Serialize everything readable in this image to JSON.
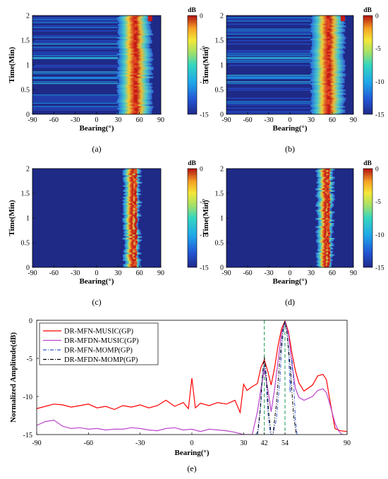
{
  "panels": [
    {
      "id": "a",
      "caption": "(a)",
      "type": "heatmap",
      "xlabel": "Bearing(°)",
      "ylabel": "Time(Min)",
      "xticks": [
        "-90",
        "-60",
        "-30",
        "0",
        "30",
        "60",
        "90"
      ],
      "yticks": [
        "0",
        "0.5",
        "1",
        "1.5",
        "2"
      ],
      "colorbar_title": "dB",
      "colorbar_ticks": [
        "0",
        "-5",
        "-10",
        "-15"
      ]
    },
    {
      "id": "b",
      "caption": "(b)",
      "type": "heatmap",
      "xlabel": "Bearing(°)",
      "ylabel": "Time(Min)",
      "xticks": [
        "-90",
        "-60",
        "-30",
        "0",
        "30",
        "60",
        "90"
      ],
      "yticks": [
        "0",
        "0.5",
        "1",
        "1.5",
        "2"
      ],
      "colorbar_title": "dB",
      "colorbar_ticks": [
        "0",
        "-5",
        "-10",
        "-15"
      ]
    },
    {
      "id": "c",
      "caption": "(c)",
      "type": "heatmap",
      "xlabel": "Bearing(°)",
      "ylabel": "Time(Min)",
      "xticks": [
        "-90",
        "-60",
        "-30",
        "0",
        "30",
        "60",
        "90"
      ],
      "yticks": [
        "0",
        "0.5",
        "1",
        "1.5",
        "2"
      ],
      "colorbar_title": "dB",
      "colorbar_ticks": [
        "0",
        "-5",
        "-10",
        "-15"
      ]
    },
    {
      "id": "d",
      "caption": "(d)",
      "type": "heatmap",
      "xlabel": "Bearing(°)",
      "ylabel": "Time(Min)",
      "xticks": [
        "-90",
        "-60",
        "-30",
        "0",
        "30",
        "60",
        "90"
      ],
      "yticks": [
        "0",
        "0.5",
        "1",
        "1.5",
        "2"
      ],
      "colorbar_title": "dB",
      "colorbar_ticks": [
        "0",
        "-5",
        "-10",
        "-15"
      ]
    }
  ],
  "chart_data": {
    "type": "line",
    "caption": "(e)",
    "xlabel": "Bearing(°)",
    "ylabel": "Normalized Amplitude(dB)",
    "xlim": [
      -90,
      90
    ],
    "ylim": [
      -15,
      0
    ],
    "xticks": [
      "-90",
      "-60",
      "-30",
      "0",
      "30",
      "42",
      "54",
      "90"
    ],
    "yticks": [
      "0",
      "-5",
      "-10",
      "-15"
    ],
    "markers": [
      42,
      54
    ],
    "legend_position": "top-left",
    "series": [
      {
        "name": "DR-MFN-MUSIC(GP)",
        "color": "#ff0000",
        "style": "solid",
        "x": [
          -90,
          -85,
          -80,
          -75,
          -70,
          -65,
          -60,
          -55,
          -50,
          -45,
          -40,
          -35,
          -30,
          -25,
          -20,
          -15,
          -10,
          -5,
          -2,
          0,
          2,
          5,
          10,
          15,
          20,
          25,
          28,
          30,
          32,
          35,
          38,
          40,
          42,
          44,
          46,
          48,
          50,
          52,
          54,
          56,
          58,
          60,
          62,
          65,
          70,
          73,
          76,
          78,
          80,
          83,
          86,
          90
        ],
        "y": [
          -11.6,
          -11.3,
          -11,
          -11.1,
          -11.4,
          -11.2,
          -11,
          -11.5,
          -11.3,
          -11.7,
          -11.2,
          -11.4,
          -11.1,
          -11.5,
          -11.2,
          -10.5,
          -11.3,
          -10.8,
          -11.6,
          -7.6,
          -11.5,
          -10.9,
          -11.2,
          -10.8,
          -11,
          -10.5,
          -12.1,
          -8.4,
          -9.2,
          -8.7,
          -8.3,
          -6.2,
          -5.2,
          -6.7,
          -8.5,
          -6.2,
          -3.3,
          -1.1,
          -0.1,
          -1.5,
          -4.3,
          -6.6,
          -8.2,
          -9.3,
          -8.5,
          -7.3,
          -7.1,
          -7.8,
          -10.5,
          -14.2,
          -14.5,
          -14.6
        ]
      },
      {
        "name": "DR-MFDN-MUSIC(GP)",
        "color": "#bb44cc",
        "style": "solid",
        "x": [
          -90,
          -85,
          -80,
          -75,
          -70,
          -65,
          -60,
          -55,
          -50,
          -45,
          -40,
          -35,
          -30,
          -25,
          -20,
          -15,
          -10,
          -5,
          0,
          5,
          10,
          15,
          20,
          25,
          30,
          35,
          38,
          40,
          42,
          44,
          46,
          48,
          50,
          52,
          54,
          56,
          58,
          60,
          62,
          65,
          70,
          73,
          76,
          78,
          80,
          83,
          85,
          87,
          88
        ],
        "y": [
          -13.8,
          -13.3,
          -13.1,
          -13.9,
          -14.2,
          -14.1,
          -14.3,
          -14.2,
          -14.4,
          -14.3,
          -14.3,
          -14.1,
          -14.2,
          -14.4,
          -14.5,
          -14.2,
          -14.1,
          -14.4,
          -14.3,
          -14.6,
          -14.3,
          -14.4,
          -14.5,
          -14.7,
          -15,
          -15,
          -12,
          -9,
          -6.4,
          -9,
          -12,
          -9,
          -5.3,
          -1.6,
          -0.2,
          -1.8,
          -5.7,
          -8.9,
          -10.1,
          -10.5,
          -10,
          -9.2,
          -9,
          -9.5,
          -11,
          -13.5,
          -14.5,
          -15,
          -15
        ]
      },
      {
        "name": "DR-MFN-MOMP(GP)",
        "color": "#3355cc",
        "style": "dashdot",
        "x": [
          37,
          38.5,
          40,
          41,
          42,
          43,
          44,
          45.5,
          47,
          49,
          51,
          52,
          53,
          54,
          55,
          56,
          57,
          58,
          59,
          60,
          61
        ],
        "y": [
          -15,
          -14.5,
          -11,
          -7,
          -5.8,
          -7.5,
          -12,
          -15,
          -15,
          -13,
          -8,
          -4,
          -1.5,
          -0.1,
          -1.5,
          -3.8,
          -9.5,
          -5,
          -8,
          -13,
          -15
        ]
      },
      {
        "name": "DR-MFDN-MOMP(GP)",
        "color": "#000000",
        "style": "dashdot",
        "x": [
          38,
          39.5,
          41,
          42,
          43,
          44.5,
          46,
          47,
          48,
          49,
          51,
          53,
          54,
          55,
          57,
          59,
          60.5
        ],
        "y": [
          -15,
          -12,
          -7,
          -4.8,
          -7,
          -12,
          -15,
          -15,
          -13,
          -11,
          -5,
          -0.8,
          -0.1,
          -1.2,
          -6,
          -12.5,
          -15
        ]
      }
    ]
  }
}
